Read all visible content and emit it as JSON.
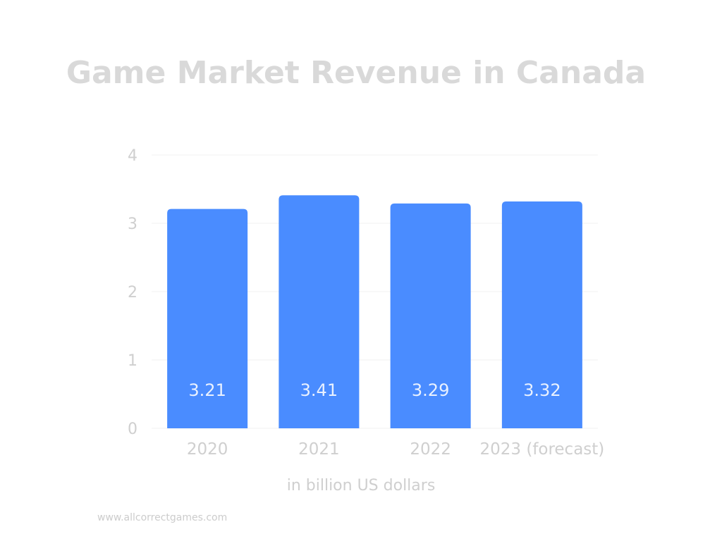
{
  "chart_data": {
    "type": "bar",
    "title": "Game Market Revenue in Canada",
    "xlabel": "in billion US dollars",
    "ylabel": "",
    "categories": [
      "2020",
      "2021",
      "2022",
      "2023 (forecast)"
    ],
    "values": [
      3.21,
      3.41,
      3.29,
      3.32
    ],
    "data_labels": [
      "3.21",
      "3.41",
      "3.29",
      "3.32"
    ],
    "ylim": [
      0,
      4
    ],
    "yticks": [
      "0",
      "1",
      "2",
      "3",
      "4"
    ],
    "grid": true,
    "legend": "none",
    "colors": {
      "bar": "#4a8cff",
      "data_label": "#e9f1ff",
      "text": "#cfcfcf",
      "title": "#d9d9d9",
      "grid": "#f0f0f0"
    }
  },
  "footer": {
    "source": "www.allcorrectgames.com"
  }
}
